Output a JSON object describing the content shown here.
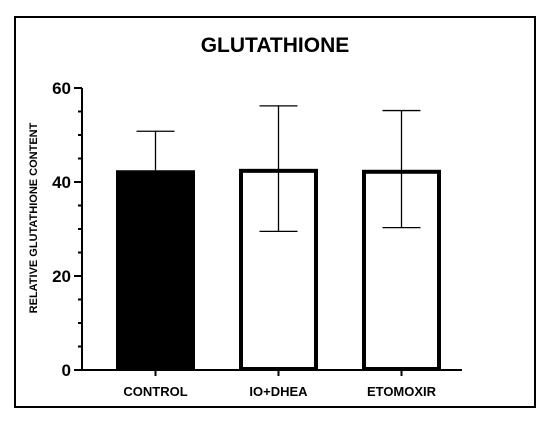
{
  "chart_data": {
    "type": "bar",
    "title": "GLUTATHIONE",
    "ylabel": "RELATIVE GLUTATHIONE CONTENT",
    "xlabel": "",
    "categories": [
      "CONTROL",
      "IO+DHEA",
      "ETOMOXIR"
    ],
    "values": [
      42.5,
      42.8,
      42.6
    ],
    "error_upper": [
      50.8,
      56.2,
      55.2
    ],
    "error_lower": [
      42.5,
      29.5,
      30.3
    ],
    "bar_fill_colors": [
      "#000000",
      "#ffffff",
      "#ffffff"
    ],
    "bar_edge_color": "#000000",
    "ylim": [
      0,
      60
    ],
    "yticks": [
      {
        "value": 0,
        "label": "0"
      },
      {
        "value": 20,
        "label": "20"
      },
      {
        "value": 40,
        "label": "40"
      },
      {
        "value": 60,
        "label": "60"
      }
    ],
    "minor_tick_step": 5,
    "grid": false
  }
}
